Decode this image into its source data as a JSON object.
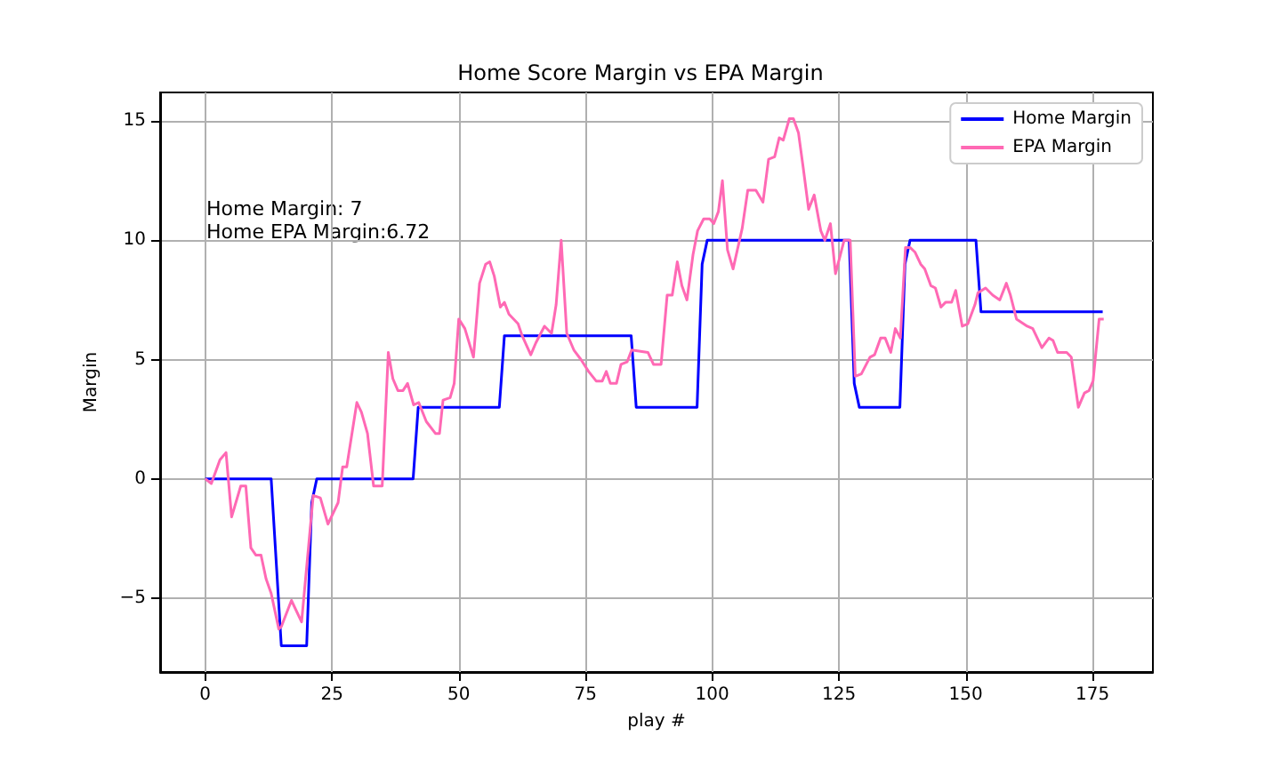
{
  "chart_data": {
    "type": "line",
    "title": "Home Score Margin vs EPA Margin",
    "xlabel": "play #",
    "ylabel": "Margin",
    "xlim": [
      -8.9,
      186.9
    ],
    "xticks": [
      0,
      25,
      50,
      75,
      100,
      125,
      150,
      175
    ],
    "ylim": [
      -8.1,
      16.2
    ],
    "yticks": [
      -5,
      0,
      5,
      10,
      15
    ],
    "grid": true,
    "legend": "top right",
    "marker": "none",
    "line_style": "solid",
    "annotations": [
      "Home Margin: 7",
      "Home EPA Margin:6.72"
    ],
    "series": [
      {
        "name": "Home Margin",
        "color": "#0000ff",
        "x": [
          0,
          13,
          15,
          20,
          21,
          22,
          41,
          42,
          58,
          59,
          84,
          85,
          97,
          98,
          99,
          127,
          128,
          129,
          137,
          138,
          139,
          152,
          153,
          177
        ],
        "values": [
          0,
          0,
          -7,
          -7,
          -1,
          0,
          0,
          3,
          3,
          6,
          6,
          3,
          3,
          9,
          10,
          10,
          4,
          3,
          3,
          9,
          10,
          10,
          7,
          7
        ]
      },
      {
        "name": "EPA Margin",
        "color": "#ff69b4",
        "x": [
          0,
          1.2,
          2.9,
          4.1,
          5.2,
          7,
          8,
          9,
          10,
          11,
          12,
          13,
          14.5,
          15,
          17,
          19,
          21.3,
          22.7,
          24.2,
          26.2,
          27.1,
          27.9,
          29.9,
          30.8,
          32,
          33.2,
          34.9,
          36.1,
          37,
          38,
          39,
          39.9,
          41.1,
          42.1,
          43.6,
          45.4,
          46.2,
          46.9,
          48.3,
          49.1,
          50,
          51.2,
          52.9,
          54.1,
          55.3,
          56.1,
          57,
          58.2,
          59,
          59.9,
          61.7,
          62.5,
          64.2,
          65.2,
          66.9,
          68.3,
          69.2,
          70.2,
          71.3,
          72.7,
          74.1,
          75.6,
          77.1,
          78.3,
          79.1,
          79.9,
          81.1,
          82,
          83.2,
          84.1,
          87.3,
          88.4,
          89.9,
          91.1,
          92.1,
          93.1,
          94,
          95,
          96.2,
          97.1,
          98.3,
          99.5,
          100.3,
          101.2,
          102,
          103,
          104.1,
          105.9,
          107,
          108.6,
          110,
          111.1,
          112.3,
          113.2,
          114,
          115.2,
          116,
          117,
          117.9,
          119,
          120.1,
          121.4,
          122.2,
          123.3,
          124.3,
          126,
          127.2,
          128.2,
          129.4,
          131.1,
          132,
          133.2,
          134.1,
          135.2,
          136.1,
          137.1,
          138.1,
          139,
          140,
          141.1,
          141.9,
          143.1,
          144,
          145.1,
          146,
          147.2,
          148,
          149.3,
          150.4,
          151.8,
          152.4,
          153.9,
          155.3,
          156.7,
          158,
          158.8,
          160,
          162.1,
          163.2,
          165,
          166.4,
          167.2,
          168.1,
          169.9,
          170.8,
          172.2,
          173.4,
          174.3,
          175.1,
          176.3,
          177.2
        ],
        "values": [
          0,
          -0.2,
          0.8,
          1.1,
          -1.6,
          -0.3,
          -0.3,
          -2.9,
          -3.2,
          -3.2,
          -4.2,
          -4.8,
          -6.3,
          -6.2,
          -5.1,
          -6,
          -0.7,
          -0.8,
          -1.9,
          -1,
          0.5,
          0.5,
          3.2,
          2.8,
          1.9,
          -0.3,
          -0.3,
          5.3,
          4.2,
          3.7,
          3.7,
          4,
          3.1,
          3.2,
          2.4,
          1.9,
          1.9,
          3.3,
          3.4,
          4,
          6.7,
          6.3,
          5.1,
          8.2,
          9,
          9.1,
          8.5,
          7.2,
          7.4,
          6.9,
          6.5,
          6,
          5.2,
          5.7,
          6.4,
          6.1,
          7.3,
          10,
          6.1,
          5.4,
          5,
          4.5,
          4.1,
          4.1,
          4.5,
          4,
          4,
          4.8,
          4.9,
          5.4,
          5.3,
          4.8,
          4.8,
          7.7,
          7.7,
          9.1,
          8.1,
          7.5,
          9.4,
          10.4,
          10.9,
          10.9,
          10.7,
          11.2,
          12.5,
          9.6,
          8.8,
          10.5,
          12.1,
          12.1,
          11.6,
          13.4,
          13.5,
          14.3,
          14.2,
          15.1,
          15.1,
          14.5,
          13.1,
          11.3,
          11.9,
          10.4,
          10,
          10.7,
          8.6,
          10,
          10,
          4.3,
          4.4,
          5.1,
          5.2,
          5.9,
          5.9,
          5.3,
          6.3,
          5.9,
          9.7,
          9.7,
          9.5,
          9,
          8.8,
          8.1,
          8,
          7.2,
          7.4,
          7.4,
          7.9,
          6.4,
          6.5,
          7.3,
          7.8,
          8,
          7.7,
          7.5,
          8.2,
          7.7,
          6.7,
          6.4,
          6.3,
          5.5,
          5.9,
          5.8,
          5.3,
          5.3,
          5.1,
          3,
          3.6,
          3.7,
          4.1,
          6.7,
          6.7
        ]
      }
    ]
  }
}
